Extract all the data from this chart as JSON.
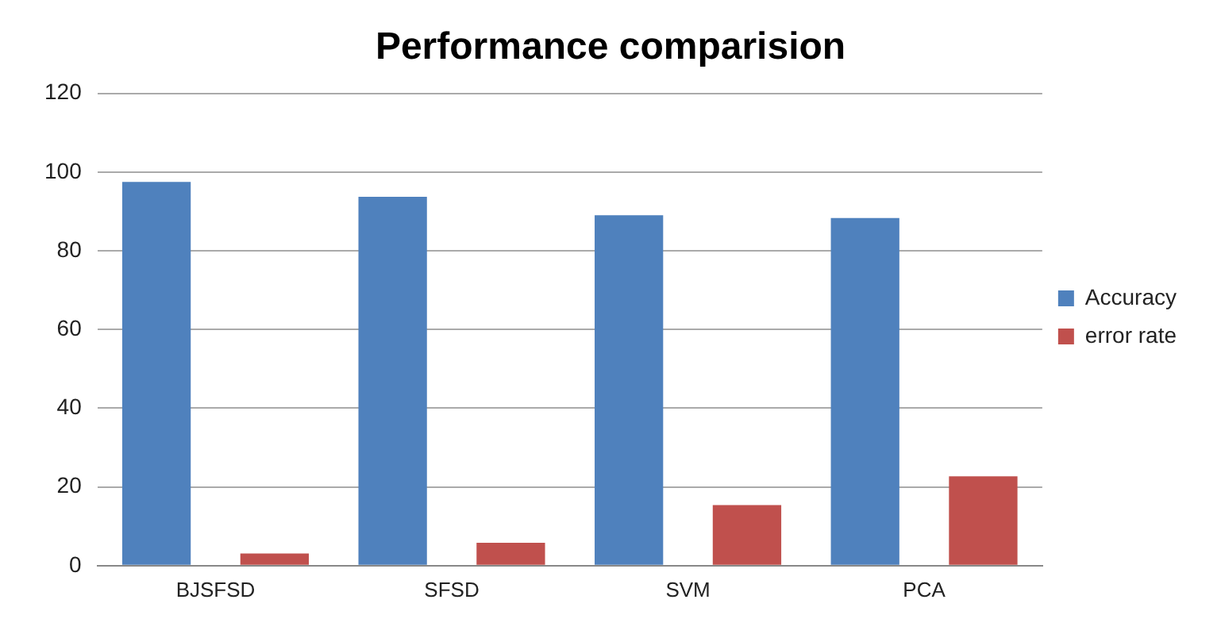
{
  "chart_data": {
    "type": "bar",
    "title": "Performance comparision",
    "categories": [
      "BJSFSD",
      "SFSD",
      "SVM",
      "PCA"
    ],
    "series": [
      {
        "name": "Accuracy",
        "color": "#4f81bd",
        "values": [
          97.5,
          93.7,
          89,
          88.3
        ]
      },
      {
        "name": "error rate",
        "color": "#c0504d",
        "values": [
          3.1,
          5.8,
          15.4,
          22.7
        ]
      }
    ],
    "ylim": [
      0,
      120
    ],
    "yticks": [
      0,
      20,
      40,
      60,
      80,
      100,
      120
    ],
    "grid": "y",
    "legend": "right"
  }
}
